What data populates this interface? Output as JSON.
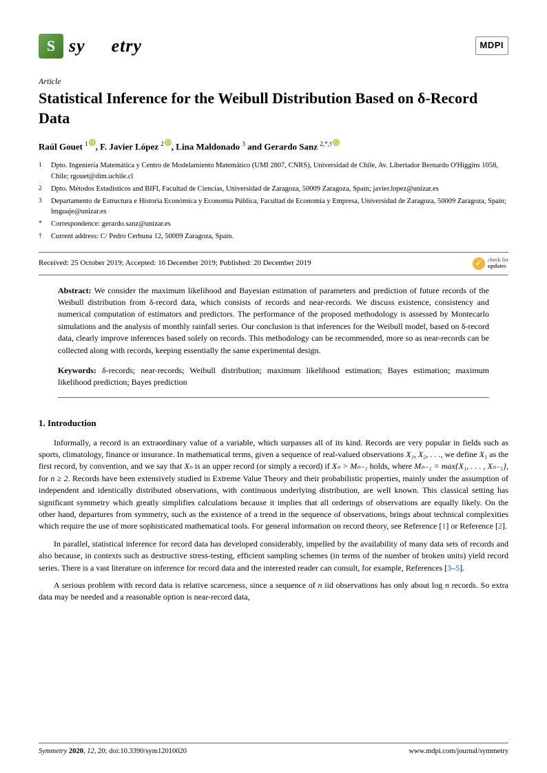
{
  "journal": {
    "name_left": "sy",
    "name_right": "etry",
    "publisher": "MDPI"
  },
  "article_type": "Article",
  "title": "Statistical Inference for the Weibull Distribution Based on δ-Record Data",
  "authors_html": "Raúl Gouet <sup>1</sup>, F. Javier López <sup>2</sup>, Lina Maldonado <sup>3</sup> and Gerardo Sanz <sup>2,*,†</sup>",
  "author1": "Raúl Gouet",
  "author1_sup": "1",
  "author2": "F. Javier López",
  "author2_sup": "2",
  "author3": "Lina Maldonado",
  "author3_sup": "3",
  "author4": "Gerardo Sanz",
  "author4_sup": "2,*,†",
  "affiliations": [
    {
      "num": "1",
      "txt": "Dpto. Ingeniería Matemática y Centro de Modelamiento Matemático (UMI 2807, CNRS), Universidad de Chile, Av. Libertador Bernardo O'Higgins 1058, Chile; rgouet@dim.uchile.cl"
    },
    {
      "num": "2",
      "txt": "Dpto. Métodos Estadísticos and BIFI, Facultad de Ciencias, Universidad de Zaragoza, 50009 Zaragoza, Spain; javier.lopez@unizar.es"
    },
    {
      "num": "3",
      "txt": "Departamento de Estructura e Historia Económica y Economía Pública, Facultad de Economía y Empresa, Universidad de Zaragoza, 50009 Zaragoza, Spain; lmguaje@unizar.es"
    },
    {
      "num": "*",
      "txt": "Correspondence: gerardo.sanz@unizar.es"
    },
    {
      "num": "†",
      "txt": "Current address: C/ Pedro Cerbuna 12, 50009 Zaragoza, Spain."
    }
  ],
  "dates": "Received: 25 October 2019; Accepted: 16 December 2019; Published: 20 December 2019",
  "check_line1": "check for",
  "check_line2": "updates",
  "abstract_label": "Abstract:",
  "abstract": "We consider the maximum likelihood and Bayesian estimation of parameters and prediction of future records of the Weibull distribution from δ-record data, which consists of records and near-records. We discuss existence, consistency and numerical computation of estimators and predictors. The performance of the proposed methodology is assessed by Montecarlo simulations and the analysis of monthly rainfall series. Our conclusion is that inferences for the Weibull model, based on δ-record data, clearly improve inferences based solely on records. This methodology can be recommended, more so as near-records can be collected along with records, keeping essentially the same experimental design.",
  "keywords_label": "Keywords:",
  "keywords": "δ-records; near-records; Weibull distribution; maximum likelihood estimation; Bayes estimation; maximum likelihood prediction; Bayes prediction",
  "section1": "1. Introduction",
  "para1a": "Informally, a record is an extraordinary value of a variable, which surpasses all of its kind. Records are very popular in fields such as sports, climatology, finance or insurance. In mathematical terms, given a sequence of real-valued observations ",
  "para1b": ", we define ",
  "para1c": " as the first record, by convention, and we say that ",
  "para1d": " is an upper record (or simply a record) if ",
  "para1e": " holds, where ",
  "para1f": ", for ",
  "para1g": ". Records have been extensively studied in Extreme Value Theory and their probabilistic properties, mainly under the assumption of independent and identically distributed observations, with continuous underlying distribution, are well known. This classical setting has significant symmetry which greatly simplifies calculations because it implies that all orderings of observations are equally likely. On the other hand, departures from symmetry, such as the existence of a trend in the sequence of observations, brings about technical complexities which require the use of more sophisticated mathematical tools. For general information on record theory, see Reference [",
  "para1h": "] or Reference [",
  "para1i": "].",
  "math1": "X₁, X₂, . . .",
  "math2": "X₁",
  "math3": "Xₙ",
  "math4": "Xₙ > Mₙ₋₁",
  "math5": "Mₙ₋₁ = max{X₁, . . . , Xₙ₋₁}",
  "math6": "n ≥ 2",
  "ref1": "1",
  "ref2": "2",
  "para2a": "In parallel, statistical inference for record data has developed considerably, impelled by the availability of many data sets of records and also because, in contexts such as destructive stress-testing, efficient sampling schemes (in terms of the number of broken units) yield record series. There is a vast literature on inference for record data and the interested reader can consult, for example, References [",
  "para2b": "–",
  "para2c": "].",
  "ref3": "3",
  "ref5": "5",
  "para3a": "A serious problem with record data is relative scarceness, since a sequence of ",
  "para3b": " iid observations has only about log ",
  "para3c": " records. So extra data may be needed and a reasonable option is near-record data,",
  "math_n": "n",
  "footer_left": "Symmetry 2020, 12, 20; doi:10.3390/sym12010020",
  "footer_right": "www.mdpi.com/journal/symmetry"
}
